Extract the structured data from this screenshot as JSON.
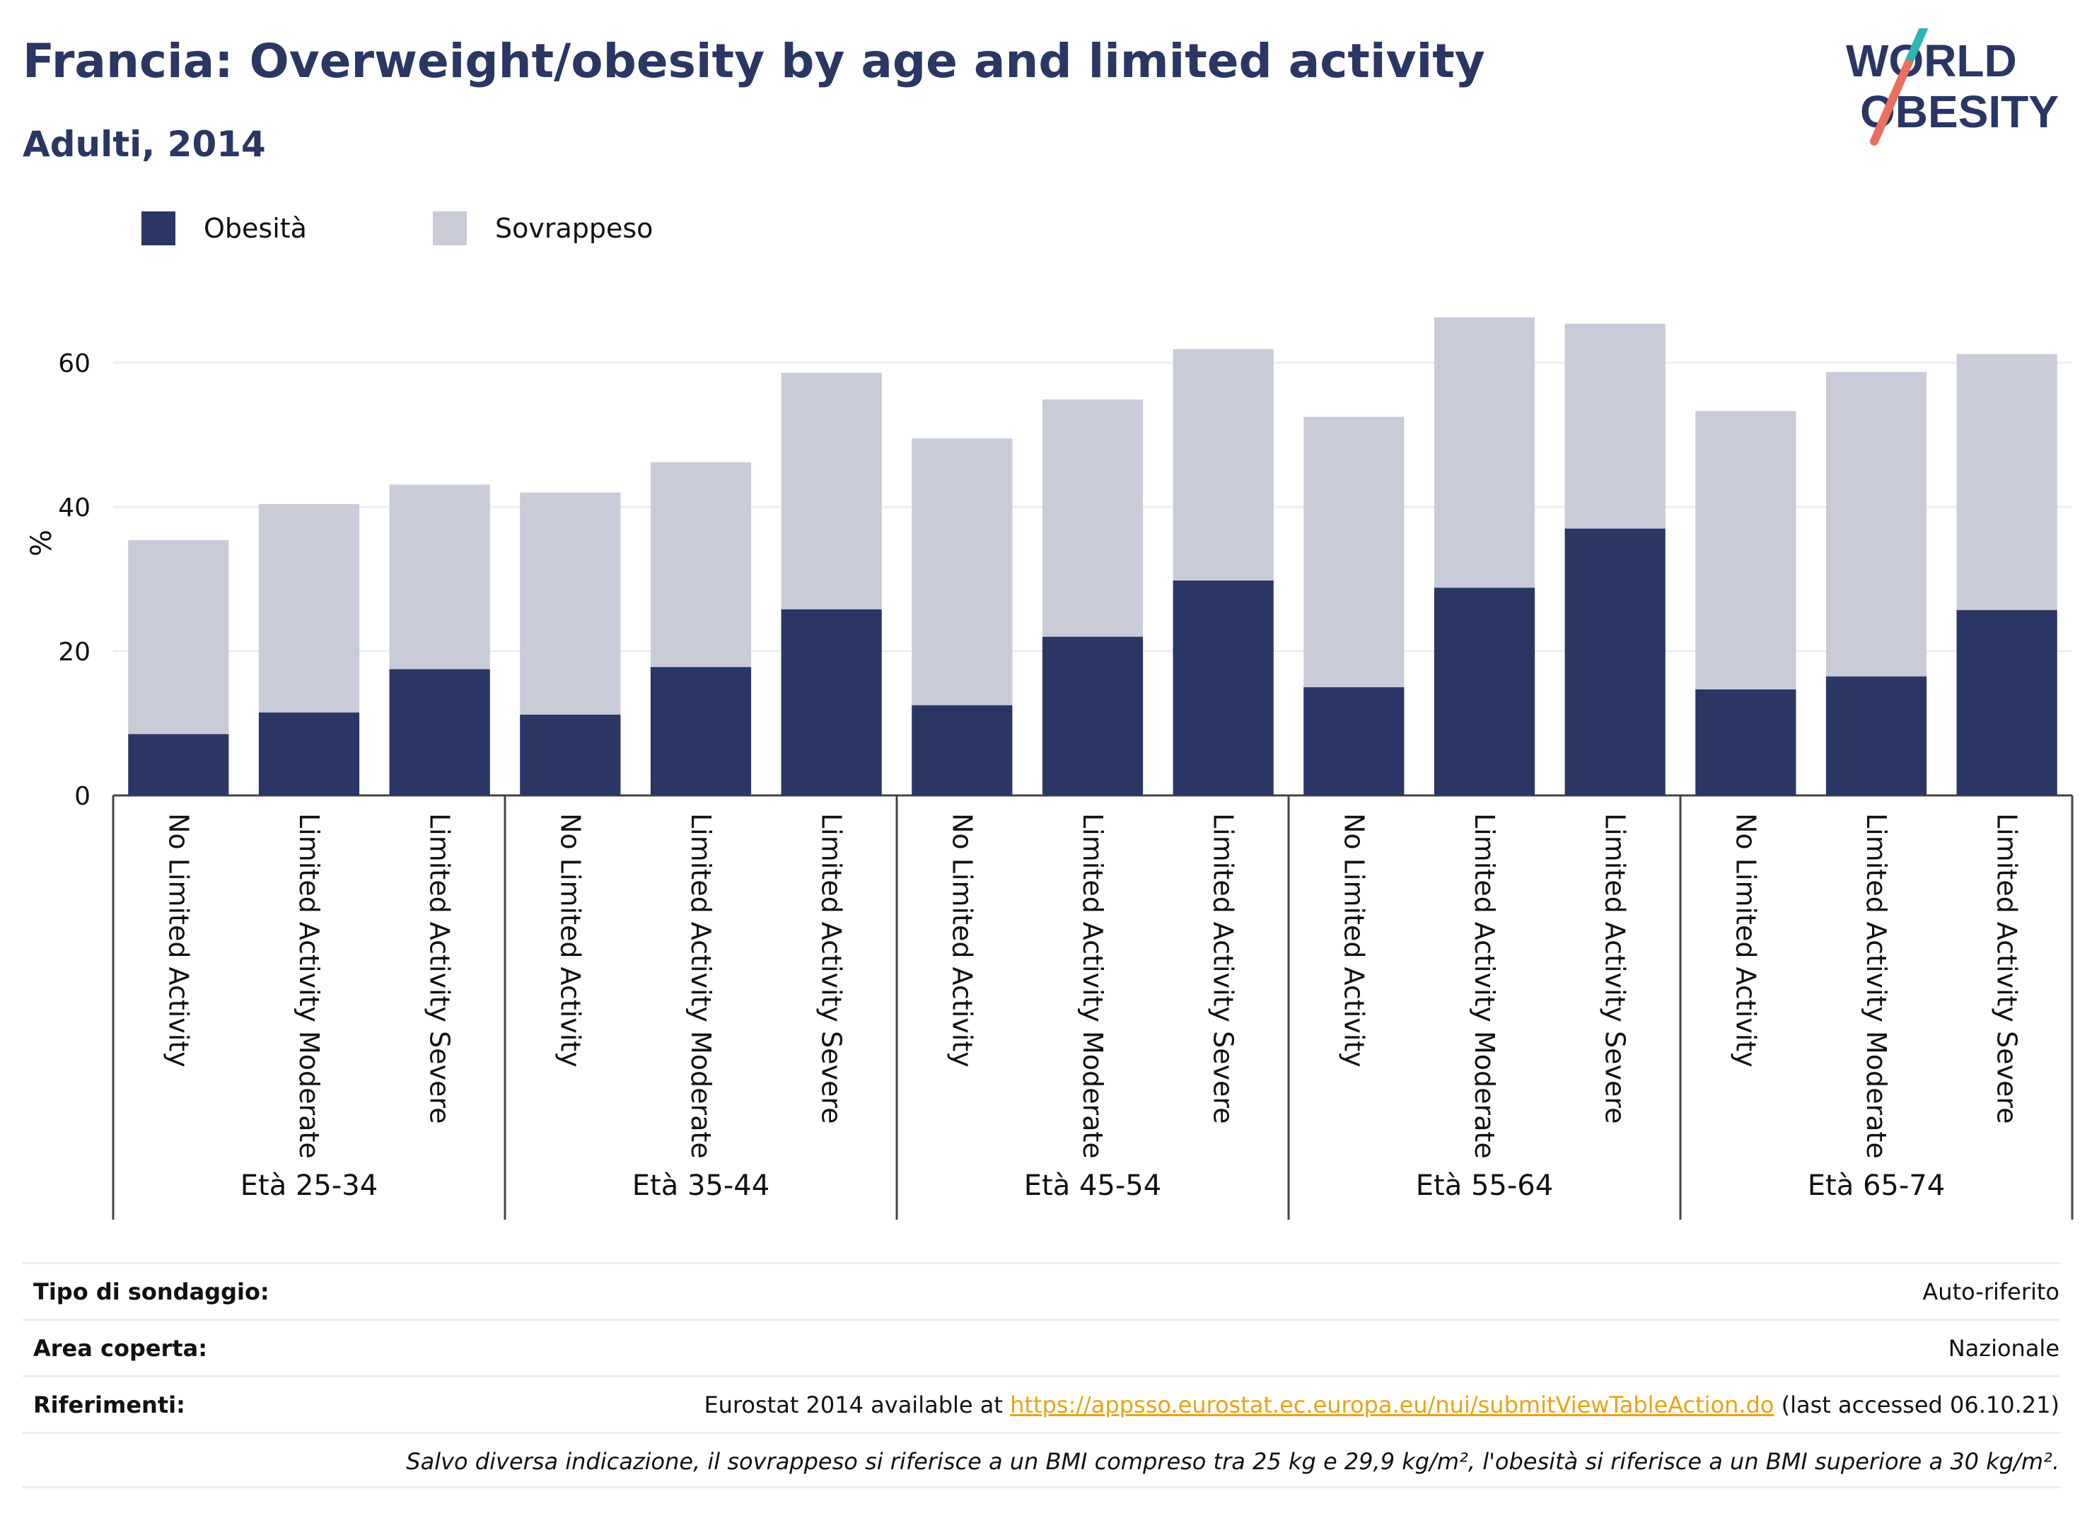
{
  "header": {
    "title": "Francia: Overweight/obesity by age and limited activity",
    "subtitle": "Adulti, 2014"
  },
  "logo": {
    "line1": "WORLD",
    "line2": "OBESITY"
  },
  "colors": {
    "obesity": "#2a3663",
    "overweight": "#c9cbd8",
    "title": "#2a3663",
    "link": "#e8a315",
    "grid": "#ecedf3"
  },
  "chart_data": {
    "type": "bar",
    "stacked": true,
    "ylabel": "%",
    "ylim": [
      0,
      70
    ],
    "yticks": [
      0,
      20,
      40,
      60
    ],
    "grid": true,
    "legend_position": "top-left",
    "groups": [
      {
        "label": "Età 25-34",
        "categories": [
          "No Limited Activity",
          "Limited Activity Moderate",
          "Limited Activity Severe"
        ]
      },
      {
        "label": "Età 35-44",
        "categories": [
          "No Limited Activity",
          "Limited Activity Moderate",
          "Limited Activity Severe"
        ]
      },
      {
        "label": "Età 45-54",
        "categories": [
          "No Limited Activity",
          "Limited Activity Moderate",
          "Limited Activity Severe"
        ]
      },
      {
        "label": "Età 55-64",
        "categories": [
          "No Limited Activity",
          "Limited Activity Moderate",
          "Limited Activity Severe"
        ]
      },
      {
        "label": "Età 65-74",
        "categories": [
          "No Limited Activity",
          "Limited Activity Moderate",
          "Limited Activity Severe"
        ]
      }
    ],
    "series": [
      {
        "name": "Obesità",
        "values": [
          8.5,
          11.5,
          17.5,
          11.2,
          17.8,
          25.8,
          12.5,
          22.0,
          29.8,
          15.0,
          28.8,
          37.0,
          14.7,
          16.5,
          25.7
        ]
      },
      {
        "name": "Sovrappeso",
        "values": [
          26.9,
          28.9,
          25.6,
          30.8,
          28.4,
          32.8,
          37.0,
          32.9,
          32.1,
          37.5,
          37.5,
          28.4,
          38.6,
          42.2,
          35.5
        ]
      }
    ]
  },
  "info": {
    "survey_label": "Tipo di sondaggio:",
    "survey_value": "Auto-riferito",
    "area_label": "Area coperta:",
    "area_value": "Nazionale",
    "refs_label": "Riferimenti:",
    "refs_prefix": "Eurostat 2014 available at ",
    "refs_link": "https://appsso.eurostat.ec.europa.eu/nui/submitViewTableAction.do",
    "refs_suffix": " (last accessed 06.10.21)",
    "note": "Salvo diversa indicazione, il sovrappeso si riferisce a un BMI compreso tra 25 kg e 29,9 kg/m², l'obesità si riferisce a un BMI superiore a 30 kg/m²."
  }
}
